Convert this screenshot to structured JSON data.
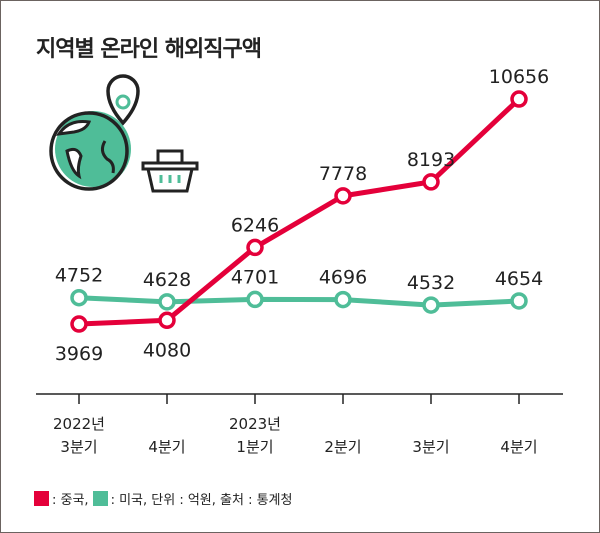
{
  "title": "지역별 온라인 해외직구액",
  "colors": {
    "china": "#e4003a",
    "us": "#4fbd98"
  },
  "chart_data": {
    "type": "line",
    "title": "지역별 온라인 해외직구액",
    "categories": [
      [
        "2022년",
        "3분기"
      ],
      [
        "",
        "4분기"
      ],
      [
        "2023년",
        "1분기"
      ],
      [
        "",
        "2분기"
      ],
      [
        "",
        "3분기"
      ],
      [
        "",
        "4분기"
      ]
    ],
    "series": [
      {
        "name": "중국",
        "values": [
          3969,
          4080,
          6246,
          7778,
          8193,
          10656
        ]
      },
      {
        "name": "미국",
        "values": [
          4752,
          4628,
          4701,
          4696,
          4532,
          4654
        ]
      }
    ],
    "unit": "억원",
    "legend_position": "bottom-left"
  },
  "legend": {
    "china": ": 중국,",
    "us": ": 미국, 단위 : 억원, 출처 : 통계청"
  }
}
